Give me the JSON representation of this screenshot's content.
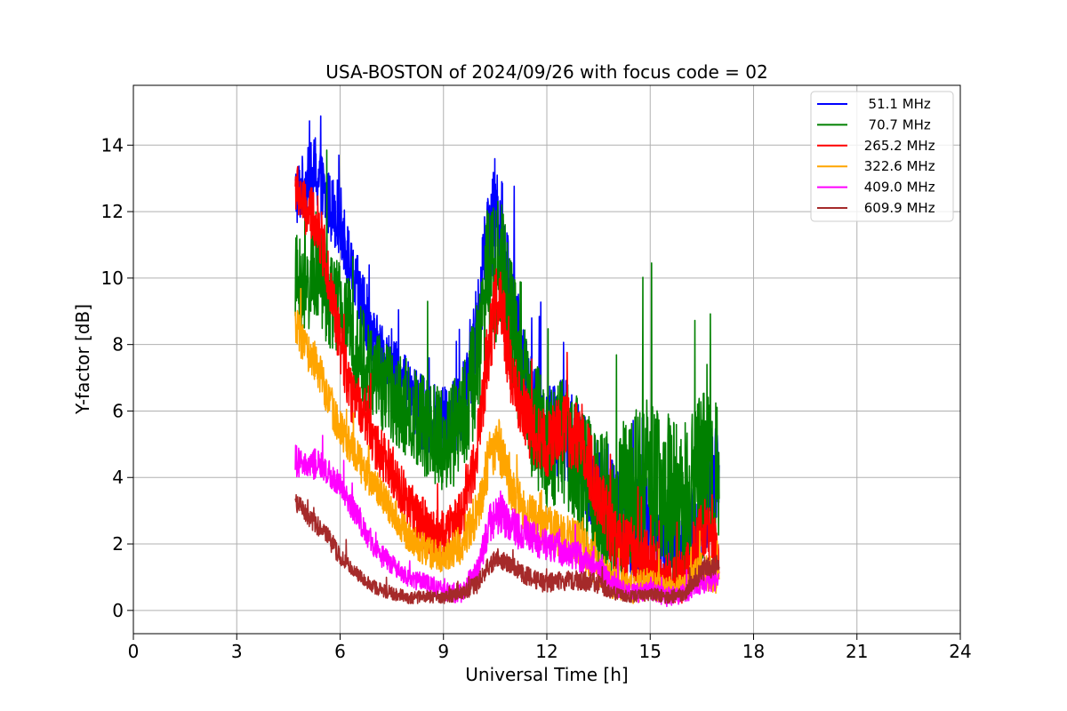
{
  "chart_data": {
    "type": "line",
    "title": "USA-BOSTON of 2024/09/26 with focus code = 02",
    "xlabel": "Universal Time [h]",
    "ylabel": "Y-factor [dB]",
    "xlim": [
      0,
      24
    ],
    "ylim": [
      -0.7,
      15.8
    ],
    "xticks": [
      0,
      3,
      6,
      9,
      12,
      15,
      18,
      21,
      24
    ],
    "xtick_labels": [
      "0",
      "3",
      "6",
      "9",
      "12",
      "15",
      "18",
      "21",
      "24"
    ],
    "yticks": [
      0,
      2,
      4,
      6,
      8,
      10,
      12,
      14
    ],
    "ytick_labels": [
      "0",
      "2",
      "4",
      "6",
      "8",
      "10",
      "12",
      "14"
    ],
    "grid": true,
    "legend_position": "top-right",
    "series": [
      {
        "name": "  51.1 MHz",
        "color": "#0000ff",
        "x": [
          4.7,
          5.0,
          5.3,
          5.6,
          6.0,
          6.3,
          6.7,
          7.0,
          7.5,
          8.0,
          8.5,
          9.0,
          9.5,
          10.0,
          10.3,
          10.6,
          11.0,
          11.5,
          12.0,
          12.5,
          13.0,
          13.5,
          14.0,
          14.5,
          15.0,
          15.5,
          16.0,
          16.5,
          17.0
        ],
        "y": [
          12.5,
          12.8,
          13.2,
          12.3,
          11.8,
          10.2,
          9.0,
          8.0,
          7.3,
          6.5,
          5.8,
          5.5,
          6.0,
          8.5,
          11.5,
          12.0,
          9.0,
          6.2,
          5.5,
          5.5,
          4.5,
          3.5,
          3.0,
          2.5,
          2.2,
          2.5,
          1.8,
          2.8,
          4.5
        ],
        "spread": [
          1.0,
          1.0,
          1.2,
          1.0,
          1.1,
          1.0,
          1.2,
          1.0,
          1.0,
          1.0,
          1.2,
          1.2,
          1.2,
          1.5,
          1.8,
          1.8,
          1.5,
          1.5,
          1.5,
          1.6,
          1.6,
          1.6,
          1.8,
          1.8,
          1.8,
          1.8,
          1.6,
          1.6,
          1.4
        ]
      },
      {
        "name": "  70.7 MHz",
        "color": "#008000",
        "x": [
          4.7,
          5.0,
          5.3,
          5.6,
          6.0,
          6.3,
          6.7,
          7.0,
          7.5,
          8.0,
          8.5,
          9.0,
          9.5,
          10.0,
          10.3,
          10.6,
          11.0,
          11.5,
          12.0,
          12.5,
          13.0,
          13.5,
          14.0,
          14.5,
          15.0,
          15.5,
          16.0,
          16.5,
          17.0
        ],
        "y": [
          10.0,
          9.5,
          10.5,
          9.5,
          9.0,
          8.5,
          7.5,
          7.0,
          6.5,
          6.0,
          5.5,
          5.0,
          5.5,
          7.5,
          10.0,
          10.5,
          8.5,
          6.0,
          5.0,
          5.2,
          4.2,
          3.2,
          3.0,
          3.5,
          3.8,
          3.5,
          3.0,
          4.0,
          4.0
        ],
        "spread": [
          1.4,
          1.4,
          1.6,
          1.5,
          1.5,
          1.5,
          1.6,
          1.5,
          1.5,
          1.5,
          1.6,
          1.6,
          1.7,
          1.9,
          2.2,
          2.4,
          2.0,
          1.9,
          1.9,
          2.0,
          2.0,
          2.2,
          2.4,
          2.6,
          2.6,
          2.6,
          2.4,
          2.6,
          2.2
        ]
      },
      {
        "name": " 265.2 MHz",
        "color": "#ff0000",
        "x": [
          4.7,
          5.0,
          5.3,
          5.6,
          6.0,
          6.3,
          6.7,
          7.0,
          7.5,
          8.0,
          8.5,
          9.0,
          9.5,
          10.0,
          10.3,
          10.6,
          11.0,
          11.5,
          12.0,
          12.5,
          13.0,
          13.5,
          14.0,
          14.5,
          15.0,
          15.5,
          16.0,
          16.5,
          17.0
        ],
        "y": [
          12.8,
          12.0,
          11.8,
          10.5,
          8.0,
          6.5,
          6.0,
          5.0,
          4.2,
          3.2,
          2.5,
          2.2,
          2.8,
          5.0,
          8.0,
          9.5,
          7.0,
          5.5,
          5.0,
          5.5,
          5.2,
          3.5,
          2.0,
          1.8,
          1.5,
          1.0,
          1.0,
          2.5,
          1.8
        ],
        "spread": [
          0.8,
          0.8,
          0.9,
          0.9,
          0.9,
          0.8,
          0.8,
          0.8,
          0.8,
          0.7,
          0.8,
          0.8,
          0.9,
          1.0,
          1.2,
          1.2,
          1.1,
          1.0,
          1.0,
          1.1,
          1.1,
          1.1,
          1.0,
          1.0,
          0.9,
          0.8,
          0.8,
          1.0,
          0.8
        ]
      },
      {
        "name": " 322.6 MHz",
        "color": "#ffa500",
        "x": [
          4.7,
          5.0,
          5.3,
          5.6,
          6.0,
          6.3,
          6.7,
          7.0,
          7.5,
          8.0,
          8.5,
          9.0,
          9.5,
          10.0,
          10.3,
          10.6,
          11.0,
          11.5,
          12.0,
          12.5,
          13.0,
          13.5,
          14.0,
          14.5,
          15.0,
          15.5,
          16.0,
          16.5,
          17.0
        ],
        "y": [
          8.5,
          7.8,
          7.5,
          6.5,
          5.5,
          5.0,
          4.2,
          3.8,
          3.0,
          2.2,
          1.8,
          1.6,
          2.0,
          3.0,
          4.5,
          5.0,
          3.5,
          2.8,
          2.5,
          2.2,
          2.0,
          1.2,
          0.8,
          0.7,
          0.8,
          0.6,
          0.7,
          1.2,
          1.0
        ],
        "spread": [
          0.7,
          0.6,
          0.6,
          0.6,
          0.6,
          0.6,
          0.6,
          0.5,
          0.5,
          0.5,
          0.5,
          0.5,
          0.6,
          0.7,
          0.8,
          0.8,
          0.7,
          0.7,
          0.7,
          0.7,
          0.7,
          0.6,
          0.5,
          0.5,
          0.5,
          0.4,
          0.4,
          0.6,
          0.5
        ]
      },
      {
        "name": " 409.0 MHz",
        "color": "#ff00ff",
        "x": [
          4.7,
          5.0,
          5.3,
          5.6,
          6.0,
          6.3,
          6.7,
          7.0,
          7.5,
          8.0,
          8.5,
          9.0,
          9.5,
          10.0,
          10.3,
          10.6,
          11.0,
          11.5,
          12.0,
          12.5,
          13.0,
          13.5,
          14.0,
          14.5,
          15.0,
          15.5,
          16.0,
          16.5,
          17.0
        ],
        "y": [
          4.5,
          4.3,
          4.4,
          4.2,
          3.8,
          3.2,
          2.5,
          1.8,
          1.4,
          1.0,
          0.8,
          0.6,
          0.5,
          1.2,
          2.5,
          3.0,
          2.5,
          2.2,
          2.0,
          1.8,
          1.6,
          1.2,
          0.7,
          0.5,
          0.6,
          0.4,
          0.5,
          0.9,
          0.9
        ],
        "spread": [
          0.5,
          0.4,
          0.5,
          0.4,
          0.4,
          0.4,
          0.4,
          0.4,
          0.3,
          0.3,
          0.3,
          0.3,
          0.3,
          0.4,
          0.6,
          0.7,
          0.6,
          0.6,
          0.5,
          0.5,
          0.5,
          0.4,
          0.3,
          0.3,
          0.3,
          0.3,
          0.3,
          0.4,
          0.3
        ]
      },
      {
        "name": " 609.9 MHz",
        "color": "#a52a2a",
        "x": [
          4.7,
          5.0,
          5.3,
          5.6,
          6.0,
          6.3,
          6.7,
          7.0,
          7.5,
          8.0,
          8.5,
          9.0,
          9.5,
          10.0,
          10.3,
          10.6,
          11.0,
          11.5,
          12.0,
          12.5,
          13.0,
          13.5,
          14.0,
          14.5,
          15.0,
          15.5,
          16.0,
          16.5,
          17.0
        ],
        "y": [
          3.3,
          2.9,
          2.6,
          2.3,
          1.6,
          1.3,
          0.9,
          0.7,
          0.5,
          0.4,
          0.4,
          0.4,
          0.5,
          0.8,
          1.3,
          1.6,
          1.3,
          1.0,
          0.8,
          0.9,
          0.9,
          0.8,
          0.5,
          0.4,
          0.5,
          0.4,
          0.5,
          1.2,
          1.4
        ],
        "spread": [
          0.3,
          0.3,
          0.3,
          0.3,
          0.3,
          0.2,
          0.2,
          0.2,
          0.2,
          0.2,
          0.2,
          0.2,
          0.2,
          0.3,
          0.3,
          0.3,
          0.3,
          0.3,
          0.3,
          0.3,
          0.3,
          0.3,
          0.2,
          0.2,
          0.2,
          0.2,
          0.2,
          0.4,
          0.3
        ]
      }
    ]
  }
}
